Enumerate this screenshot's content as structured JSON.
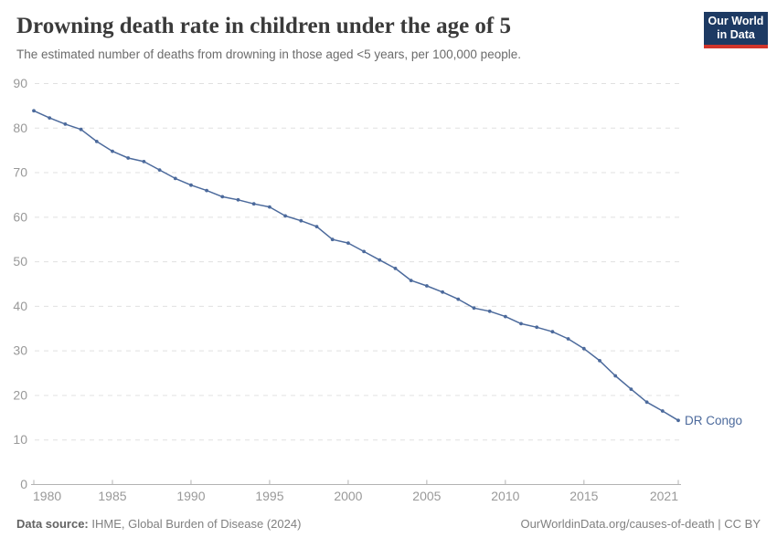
{
  "header": {
    "title": "Drowning death rate in children under the age of 5",
    "subtitle": "The estimated number of deaths from drowning in those aged <5 years, per 100,000 people."
  },
  "logo": {
    "line1": "Our World",
    "line2": "in Data"
  },
  "footer": {
    "datasource_label": "Data source:",
    "datasource_value": " IHME, Global Burden of Disease (2024)",
    "credit": "OurWorldinData.org/causes-of-death | CC BY"
  },
  "colors": {
    "series": "#4c6a9c",
    "grid": "#e0e0e0",
    "axis": "#b3b3b3",
    "tick_label": "#999999",
    "title": "#3a3a3a",
    "subtitle": "#6b6b6b",
    "logo_bg": "#1d3a63",
    "logo_stripe": "#d1352b"
  },
  "chart_data": {
    "type": "line",
    "title": "Drowning death rate in children under the age of 5",
    "subtitle": "The estimated number of deaths from drowning in those aged <5 years, per 100,000 people.",
    "xlabel": "",
    "ylabel": "",
    "xlim": [
      1980,
      2021
    ],
    "ylim": [
      0,
      90
    ],
    "x_ticks": [
      1980,
      1985,
      1990,
      1995,
      2000,
      2005,
      2010,
      2015,
      2021
    ],
    "y_ticks": [
      0,
      10,
      20,
      30,
      40,
      50,
      60,
      70,
      80,
      90
    ],
    "grid": "horizontal-dashed",
    "legend_position": "end-of-line-label",
    "series": [
      {
        "name": "DR Congo",
        "color": "#4c6a9c",
        "x": [
          1980,
          1981,
          1982,
          1983,
          1984,
          1985,
          1986,
          1987,
          1988,
          1989,
          1990,
          1991,
          1992,
          1993,
          1994,
          1995,
          1996,
          1997,
          1998,
          1999,
          2000,
          2001,
          2002,
          2003,
          2004,
          2005,
          2006,
          2007,
          2008,
          2009,
          2010,
          2011,
          2012,
          2013,
          2014,
          2015,
          2016,
          2017,
          2018,
          2019,
          2020,
          2021
        ],
        "values": [
          83.9,
          82.3,
          80.9,
          79.7,
          77.0,
          74.8,
          73.3,
          72.5,
          70.6,
          68.7,
          67.2,
          66.0,
          64.6,
          63.9,
          63.0,
          62.3,
          60.3,
          59.2,
          57.9,
          55.0,
          54.2,
          52.3,
          50.4,
          48.5,
          45.8,
          44.6,
          43.2,
          41.6,
          39.6,
          38.9,
          37.7,
          36.1,
          35.3,
          34.3,
          32.7,
          30.5,
          27.8,
          24.4,
          21.4,
          18.5,
          16.5,
          14.4
        ]
      }
    ]
  }
}
